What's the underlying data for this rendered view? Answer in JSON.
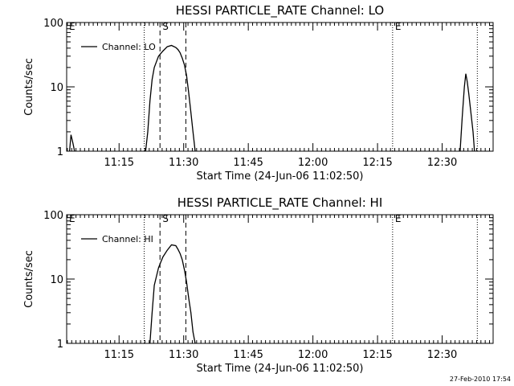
{
  "chart_data": [
    {
      "type": "line",
      "title": "HESSI PARTICLE_RATE Channel: LO",
      "xlabel": "Start Time (24-Jun-06 11:02:50)",
      "ylabel": "Counts/sec",
      "yscale": "log",
      "ylim": [
        1,
        100
      ],
      "xlim_minutes_after_start": [
        0,
        99
      ],
      "x_ticks": [
        "11:15",
        "11:30",
        "11:45",
        "12:00",
        "12:15",
        "12:30"
      ],
      "y_ticks": [
        "1",
        "10",
        "100"
      ],
      "legend": {
        "placement": "top-left",
        "entries": [
          "Channel: LO"
        ]
      },
      "markers": [
        {
          "label": "E",
          "style": "dotted",
          "time": "11:02:50"
        },
        {
          "label": "",
          "style": "dotted",
          "time": "11:20:50"
        },
        {
          "label": "S",
          "style": "dashed",
          "time": "11:24:30"
        },
        {
          "label": "",
          "style": "dashed",
          "time": "11:30:30"
        },
        {
          "label": "E",
          "style": "dotted",
          "time": "12:18:30"
        },
        {
          "label": "",
          "style": "dotted",
          "time": "12:38:10"
        }
      ],
      "series": [
        {
          "name": "Channel: LO",
          "segments": [
            {
              "x": [
                "11:03:30",
                "11:03:50",
                "11:04:20",
                "11:04:40"
              ],
              "y": [
                1,
                1.8,
                1.3,
                1
              ]
            },
            {
              "x": [
                "11:21:10",
                "11:21:40",
                "11:22:10",
                "11:22:40",
                "11:23:10",
                "11:24:10",
                "11:25:10",
                "11:26:10",
                "11:27:10",
                "11:28:10",
                "11:28:40",
                "11:29:10",
                "11:29:40",
                "11:30:10",
                "11:30:40",
                "11:31:10",
                "11:31:40",
                "11:32:10",
                "11:32:40"
              ],
              "y": [
                1,
                2,
                6,
                13,
                20,
                30,
                36,
                42,
                44,
                41,
                38,
                34,
                28,
                22,
                15,
                8,
                4,
                2,
                1
              ]
            },
            {
              "x": [
                "12:34:10",
                "12:34:40",
                "12:35:10",
                "12:35:30",
                "12:35:50",
                "12:36:10",
                "12:36:40",
                "12:37:10",
                "12:37:30"
              ],
              "y": [
                1,
                3.5,
                10,
                16,
                12,
                8,
                4,
                2,
                1
              ]
            }
          ]
        }
      ]
    },
    {
      "type": "line",
      "title": "HESSI PARTICLE_RATE Channel: HI",
      "xlabel": "Start Time (24-Jun-06 11:02:50)",
      "ylabel": "Counts/sec",
      "yscale": "log",
      "ylim": [
        1,
        100
      ],
      "xlim_minutes_after_start": [
        0,
        99
      ],
      "x_ticks": [
        "11:15",
        "11:30",
        "11:45",
        "12:00",
        "12:15",
        "12:30"
      ],
      "y_ticks": [
        "1",
        "10",
        "100"
      ],
      "legend": {
        "placement": "top-left",
        "entries": [
          "Channel: HI"
        ]
      },
      "markers": [
        {
          "label": "E",
          "style": "dotted",
          "time": "11:02:50"
        },
        {
          "label": "",
          "style": "dotted",
          "time": "11:20:50"
        },
        {
          "label": "S",
          "style": "dashed",
          "time": "11:24:30"
        },
        {
          "label": "",
          "style": "dashed",
          "time": "11:30:30"
        },
        {
          "label": "E",
          "style": "dotted",
          "time": "12:18:30"
        },
        {
          "label": "",
          "style": "dotted",
          "time": "12:38:10"
        }
      ],
      "series": [
        {
          "name": "Channel: HI",
          "segments": [
            {
              "x": [
                "11:22:10",
                "11:22:40",
                "11:23:10",
                "11:24:10",
                "11:25:10",
                "11:26:10",
                "11:27:10",
                "11:28:10",
                "11:28:40",
                "11:29:10",
                "11:29:40",
                "11:30:10",
                "11:30:40",
                "11:31:10",
                "11:31:40",
                "11:32:10",
                "11:32:40"
              ],
              "y": [
                1,
                3,
                8,
                15,
                22,
                28,
                34,
                33,
                29,
                25,
                20,
                14,
                9,
                5,
                3,
                1.5,
                1
              ]
            }
          ]
        }
      ]
    }
  ],
  "footer": {
    "timestamp": "27-Feb-2010 17:54"
  }
}
